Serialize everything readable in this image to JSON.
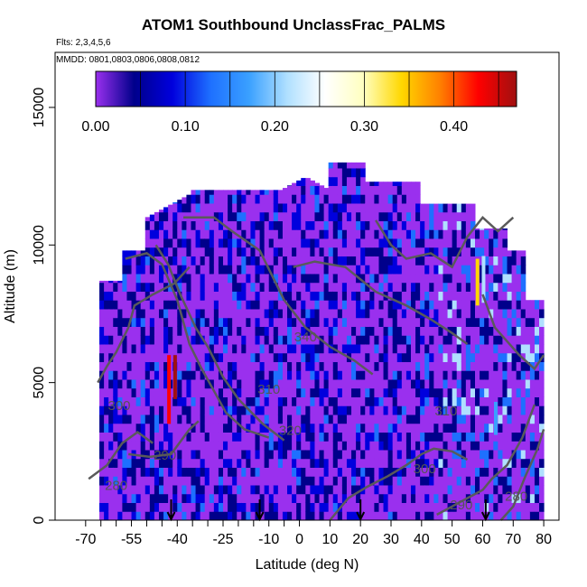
{
  "chart_data": {
    "type": "heatmap",
    "title": "ATOM1 Southbound UnclassFrac_PALMS",
    "subtitle_lines": [
      "Flts: 2,3,4,5,6",
      "MMDD: 0801,0803,0806,0808,0812"
    ],
    "xlabel": "Latitude (deg N)",
    "ylabel": "Altitude (m)",
    "xlim": [
      -70,
      80
    ],
    "ylim": [
      0,
      17000
    ],
    "x_ticks": [
      -70,
      -55,
      -40,
      -25,
      -10,
      0,
      10,
      20,
      30,
      40,
      50,
      60,
      70,
      80
    ],
    "x_tick_labels": [
      "-70",
      "-55",
      "-40",
      "-25",
      "-10",
      "0",
      "10",
      "20",
      "30",
      "40",
      "50",
      "60",
      "70",
      "80"
    ],
    "x_minor_ticks": [
      -65,
      -60,
      -50,
      -45,
      -35,
      -30,
      -20,
      -15,
      -5
    ],
    "y_ticks": [
      0,
      5000,
      10000,
      15000
    ],
    "y_tick_labels": [
      "0",
      "5000",
      "10000",
      "15000"
    ],
    "colorbar": {
      "range": [
        0,
        0.47
      ],
      "tick_values": [
        0,
        0.1,
        0.2,
        0.3,
        0.4
      ],
      "tick_labels": [
        "0.00",
        "0.10",
        "0.20",
        "0.30",
        "0.40"
      ],
      "divisions": [
        0.05,
        0.1,
        0.15,
        0.2,
        0.25,
        0.3,
        0.35,
        0.4,
        0.45
      ],
      "colors": [
        "#9a30ee",
        "#00008b",
        "#0000dd",
        "#1e70ff",
        "#3aa0ff",
        "#b0e0ff",
        "#ffffff",
        "#ffffc0",
        "#ffd700",
        "#ff8000",
        "#ff0000",
        "#a01010"
      ]
    },
    "grid": false,
    "theta_contours": [
      {
        "label": "280",
        "label_pos": [
          -60,
          1100
        ],
        "points": [
          [
            -69,
            1500
          ],
          [
            -63,
            2000
          ],
          [
            -58,
            2800
          ],
          [
            -53,
            3200
          ],
          [
            -48,
            2800
          ]
        ]
      },
      {
        "label": "290",
        "label_pos": [
          -44,
          2200
        ],
        "points": [
          [
            -56,
            2400
          ],
          [
            -49,
            2300
          ],
          [
            -42,
            2400
          ],
          [
            -36,
            3300
          ],
          [
            -33,
            3600
          ]
        ]
      },
      {
        "label": "300",
        "label_pos": [
          -59,
          4000
        ],
        "points": [
          [
            -66,
            5000
          ],
          [
            -63,
            5600
          ],
          [
            -60,
            6100
          ],
          [
            -56,
            7000
          ],
          [
            -54,
            7800
          ],
          [
            -48,
            8200
          ],
          [
            -41,
            8600
          ],
          [
            -36,
            9200
          ]
        ]
      },
      {
        "label": "310",
        "label_pos": [
          -10,
          4600
        ],
        "points": [
          [
            -57,
            9500
          ],
          [
            -50,
            9700
          ],
          [
            -45,
            9300
          ],
          [
            -40,
            8000
          ],
          [
            -36,
            6400
          ],
          [
            -32,
            5500
          ],
          [
            -28,
            4700
          ],
          [
            -24,
            3900
          ],
          [
            -18,
            3300
          ],
          [
            -10,
            3000
          ]
        ]
      },
      {
        "label": "320",
        "label_pos": [
          -3,
          3100
        ],
        "points": [
          [
            -47,
            10000
          ],
          [
            -43,
            9300
          ],
          [
            -39,
            8200
          ],
          [
            -34,
            7000
          ],
          [
            -30,
            6300
          ],
          [
            -25,
            5200
          ],
          [
            -20,
            4400
          ],
          [
            -12,
            3500
          ],
          [
            -5,
            2900
          ]
        ]
      },
      {
        "label": "340",
        "label_pos": [
          2,
          6500
        ],
        "points": [
          [
            -38,
            11000
          ],
          [
            -28,
            11000
          ],
          [
            -22,
            10500
          ],
          [
            -13,
            9800
          ],
          [
            -5,
            8000
          ],
          [
            2,
            7000
          ],
          [
            10,
            6300
          ],
          [
            18,
            5800
          ],
          [
            24,
            5300
          ]
        ]
      },
      {
        "label": "310",
        "label_pos": [
          48,
          3800
        ],
        "points": [
          [
            -2,
            9200
          ],
          [
            5,
            9400
          ],
          [
            15,
            9200
          ],
          [
            25,
            8300
          ],
          [
            35,
            7800
          ],
          [
            43,
            7300
          ],
          [
            50,
            6800
          ],
          [
            55,
            6400
          ]
        ]
      },
      {
        "label": "300",
        "label_pos": [
          41,
          1700
        ],
        "points": [
          [
            10,
            0
          ],
          [
            16,
            800
          ],
          [
            22,
            1200
          ],
          [
            29,
            1600
          ],
          [
            35,
            2000
          ],
          [
            40,
            2400
          ],
          [
            44,
            2600
          ],
          [
            50,
            2500
          ],
          [
            55,
            2200
          ]
        ]
      },
      {
        "label": "290",
        "label_pos": [
          53,
          400
        ],
        "points": [
          [
            45,
            200
          ],
          [
            50,
            500
          ],
          [
            55,
            800
          ],
          [
            60,
            1100
          ],
          [
            63,
            1500
          ],
          [
            68,
            2000
          ],
          [
            73,
            3000
          ],
          [
            77,
            4200
          ]
        ]
      },
      {
        "label": "280",
        "label_pos": [
          71,
          700
        ],
        "points": [
          [
            66,
            0
          ],
          [
            70,
            500
          ],
          [
            74,
            1600
          ],
          [
            78,
            2600
          ],
          [
            80,
            3300
          ]
        ]
      },
      {
        "label": "",
        "label_pos": null,
        "points": [
          [
            60,
            8200
          ],
          [
            64,
            7000
          ],
          [
            68,
            6500
          ],
          [
            72,
            6000
          ],
          [
            77,
            5500
          ],
          [
            80,
            6000
          ]
        ]
      },
      {
        "label": "",
        "label_pos": null,
        "points": [
          [
            25,
            10900
          ],
          [
            30,
            10000
          ],
          [
            35,
            9500
          ],
          [
            43,
            9700
          ],
          [
            50,
            9200
          ],
          [
            55,
            10300
          ],
          [
            60,
            11000
          ],
          [
            65,
            10500
          ],
          [
            70,
            11000
          ]
        ]
      }
    ],
    "flight_markers_lat": [
      -42,
      -13,
      20,
      61
    ],
    "bright_columns": [
      {
        "lat": -43,
        "ymin": 3500,
        "ymax": 6000,
        "value": 0.42
      },
      {
        "lat": -41,
        "ymin": 4400,
        "ymax": 6000,
        "value": 0.47
      },
      {
        "lat": 58,
        "ymin": 7800,
        "ymax": 9500,
        "value": 0.32
      },
      {
        "lat": 60,
        "ymin": 7900,
        "ymax": 9600,
        "value": 0.22
      },
      {
        "lat": 64,
        "ymin": 3100,
        "ymax": 4300,
        "value": 0.18
      }
    ]
  }
}
